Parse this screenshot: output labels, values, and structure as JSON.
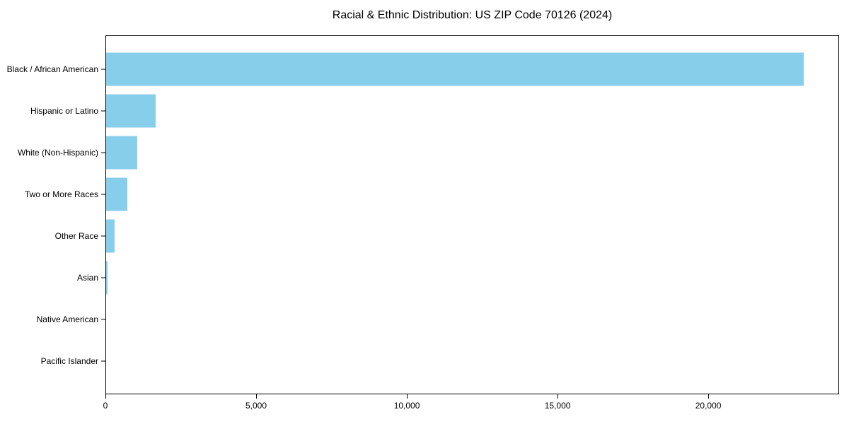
{
  "figure": {
    "background": "#ffffff",
    "text_color": "#000000",
    "axis_color": "#000000"
  },
  "chart_data": {
    "type": "bar",
    "orientation": "horizontal",
    "title": "Racial & Ethnic Distribution: US ZIP Code 70126 (2024)",
    "categories": [
      "Black / African American",
      "Hispanic or Latino",
      "White (Non-Hispanic)",
      "Two or More Races",
      "Other Race",
      "Asian",
      "Native American",
      "Pacific Islander"
    ],
    "values": [
      23170,
      1670,
      1050,
      720,
      305,
      80,
      25,
      8
    ],
    "xlabel": "",
    "ylabel": "",
    "xlim": [
      0,
      24340
    ],
    "x_ticks": [
      0,
      5000,
      10000,
      15000,
      20000
    ],
    "x_tick_labels": [
      "0",
      "5,000",
      "10,000",
      "15,000",
      "20,000"
    ],
    "bar_color": "#87CEEB",
    "grid": false,
    "legend_position": "none"
  }
}
